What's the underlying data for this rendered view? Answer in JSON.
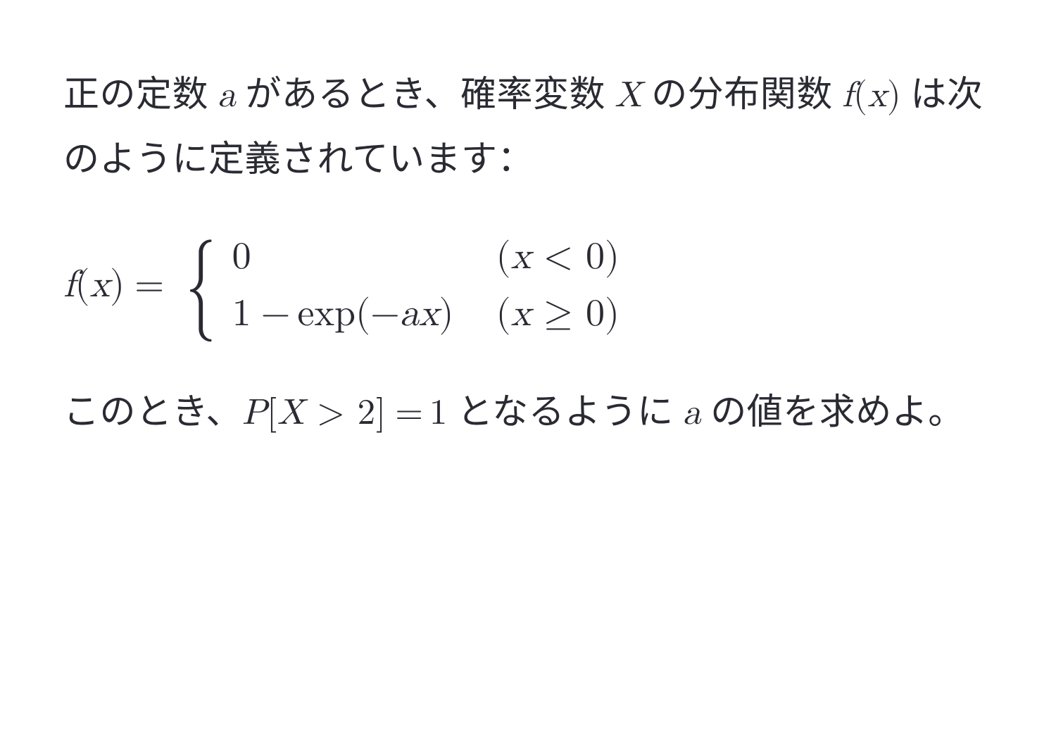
{
  "text_color": "#2a2a33",
  "background_color": "#ffffff",
  "paragraph1": {
    "seg1": "正の定数 ",
    "var_a": "a",
    "seg2": " があるとき、確率変数 ",
    "var_X": "X",
    "seg3": " の分布関数 ",
    "fx_f": "f",
    "fx_open": "(",
    "fx_x": "x",
    "fx_close": ")",
    "seg4": " は次のように定義されています："
  },
  "equation": {
    "lhs_f": "f",
    "lhs_open": "(",
    "lhs_x": "x",
    "lhs_close": ")",
    "equals": "=",
    "brace": "{",
    "case1_value": "0",
    "case1_cond_open": "(",
    "case1_cond_x": "x",
    "case1_cond_rel": " < ",
    "case1_cond_rhs": "0",
    "case1_cond_close": ")",
    "case2_value_1": "1",
    "case2_value_minus": " − ",
    "case2_value_exp": "exp",
    "case2_value_open": "(",
    "case2_value_neg": "−",
    "case2_value_a": "a",
    "case2_value_x": "x",
    "case2_value_close": ")",
    "case2_cond_open": "(",
    "case2_cond_x": "x",
    "case2_cond_rel": " ≥ ",
    "case2_cond_rhs": "0",
    "case2_cond_close": ")"
  },
  "paragraph2": {
    "seg1": "このとき、",
    "P": "P",
    "open": "[",
    "X": "X",
    "gt": " > ",
    "two": "2",
    "close": "]",
    "eq": " = ",
    "one": "1",
    "seg2": " となるように ",
    "a": "a",
    "seg3": " の値を求めよ。"
  }
}
